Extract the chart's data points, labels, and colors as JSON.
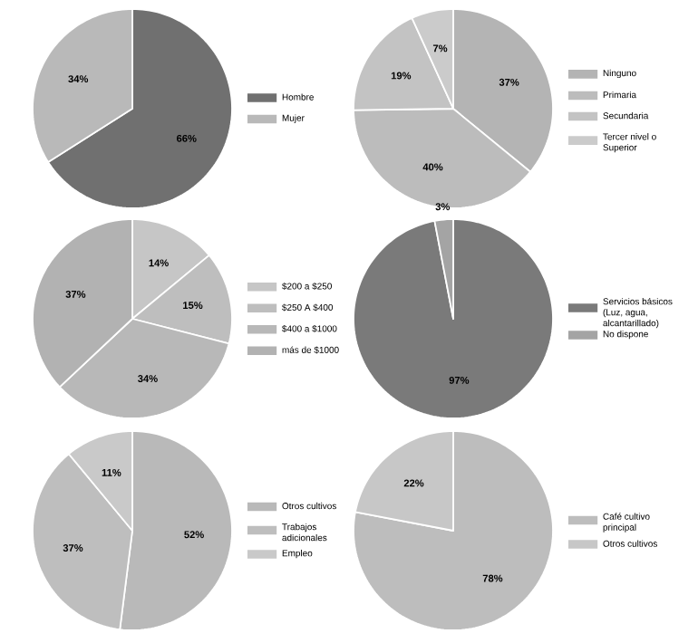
{
  "chart_data": [
    {
      "type": "pie",
      "categories": [
        "Hombre",
        "Mujer"
      ],
      "values": [
        66,
        34
      ],
      "value_labels": [
        "66%",
        "34%"
      ],
      "colors": [
        "#707070",
        "#b9b9b9"
      ],
      "legend": "right"
    },
    {
      "type": "pie",
      "categories": [
        "Ninguno",
        "Primaria",
        "Secundaria",
        "Tercer nivel o Superior"
      ],
      "values": [
        37,
        40,
        19,
        7
      ],
      "value_labels": [
        "37%",
        "40%",
        "19%",
        "7%"
      ],
      "colors": [
        "#b4b4b4",
        "#bcbcbc",
        "#c3c3c3",
        "#cbcbcb"
      ],
      "legend": "right"
    },
    {
      "type": "pie",
      "categories": [
        "$200 a $250",
        "$250 A $400",
        "$400 a $1000",
        "más de $1000"
      ],
      "values": [
        14,
        15,
        34,
        37
      ],
      "value_labels": [
        "14%",
        "15%",
        "34%",
        "37%"
      ],
      "colors": [
        "#c6c6c6",
        "#bebebe",
        "#b8b8b8",
        "#b2b2b2"
      ],
      "legend": "right"
    },
    {
      "type": "pie",
      "categories": [
        "Servicios básicos (Luz, agua, alcantarillado)",
        "No dispone"
      ],
      "values": [
        97,
        3
      ],
      "value_labels": [
        "97%",
        "3%"
      ],
      "colors": [
        "#7a7a7a",
        "#a4a4a4"
      ],
      "legend": "right"
    },
    {
      "type": "pie",
      "categories": [
        "Otros cultivos",
        "Trabajos adicionales",
        "Empleo"
      ],
      "values": [
        52,
        37,
        11
      ],
      "value_labels": [
        "52%",
        "37%",
        "11%"
      ],
      "colors": [
        "#b9b9b9",
        "#bebebe",
        "#c9c9c9"
      ],
      "legend": "right"
    },
    {
      "type": "pie",
      "categories": [
        "Café cultivo principal",
        "Otros cultivos"
      ],
      "values": [
        78,
        22
      ],
      "value_labels": [
        "78%",
        "22%"
      ],
      "colors": [
        "#bdbdbd",
        "#c7c7c7"
      ],
      "legend": "right"
    }
  ]
}
